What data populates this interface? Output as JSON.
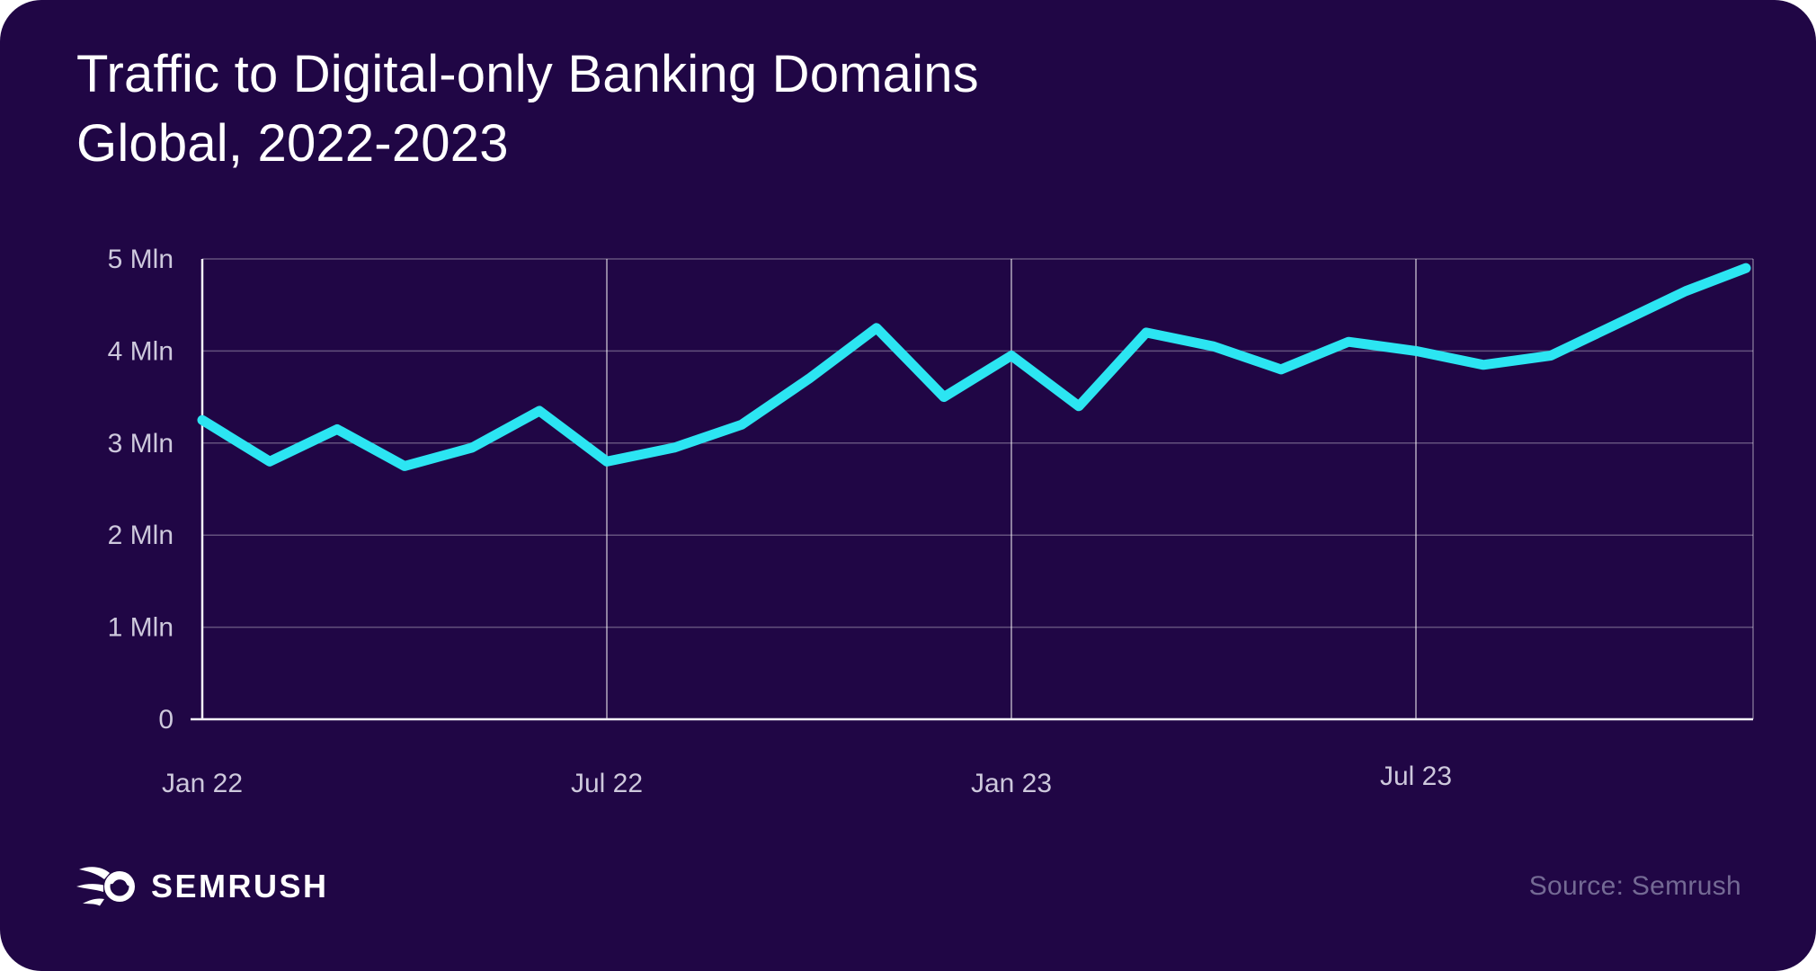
{
  "title_line1": "Traffic to Digital-only Banking Domains",
  "title_line2": "Global, 2022-2023",
  "source": "Source: Semrush",
  "brand": {
    "name": "SEMRUSH",
    "icon": "semrush-comet-icon"
  },
  "colors": {
    "background": "#200645",
    "line": "#2ce5f2",
    "axis": "#f3f1f8",
    "grid_horizontal": "rgba(255,255,255,0.30)",
    "grid_vertical": "rgba(255,255,255,0.55)",
    "plot_right_border": "rgba(255,255,255,0.40)",
    "tick_label": "#cdc8dc",
    "source_text": "#746a94"
  },
  "chart_data": {
    "type": "line",
    "title": "Traffic to Digital-only Banking Domains",
    "subtitle": "Global, 2022-2023",
    "unit": "Mln (millions of visits)",
    "x": [
      "Jan 22",
      "Feb 22",
      "Mar 22",
      "Apr 22",
      "May 22",
      "Jun 22",
      "Jul 22",
      "Aug 22",
      "Sep 22",
      "Oct 22",
      "Nov 22",
      "Dec 22",
      "Jan 23",
      "Feb 23",
      "Mar 23",
      "Apr 23",
      "May 23",
      "Jun 23",
      "Jul 23",
      "Aug 23",
      "Sep 23",
      "Oct 23",
      "Nov 23",
      "Dec 23"
    ],
    "values": [
      3.25,
      2.8,
      3.15,
      2.75,
      2.95,
      3.35,
      2.8,
      2.95,
      3.2,
      3.7,
      4.25,
      3.5,
      3.95,
      3.4,
      4.2,
      4.05,
      3.8,
      4.1,
      4.0,
      3.85,
      3.95,
      4.3,
      4.65,
      4.9
    ],
    "ylim": [
      0,
      5
    ],
    "yticks": [
      {
        "v": 0,
        "label": "0"
      },
      {
        "v": 1,
        "label": "1 Mln"
      },
      {
        "v": 2,
        "label": "2 Mln"
      },
      {
        "v": 3,
        "label": "3 Mln"
      },
      {
        "v": 4,
        "label": "4 Mln"
      },
      {
        "v": 5,
        "label": "5 Mln"
      }
    ],
    "xticks": [
      {
        "i": 0,
        "label": "Jan 22",
        "dy": 0
      },
      {
        "i": 6,
        "label": "Jul 22",
        "dy": 0
      },
      {
        "i": 12,
        "label": "Jan 23",
        "dy": 0
      },
      {
        "i": 18,
        "label": "Jul 23",
        "dy": -8
      }
    ],
    "grid": {
      "horizontal": true,
      "vertical_at": [
        6,
        12,
        18
      ]
    },
    "legend": "none",
    "line_color": "#2ce5f2"
  }
}
